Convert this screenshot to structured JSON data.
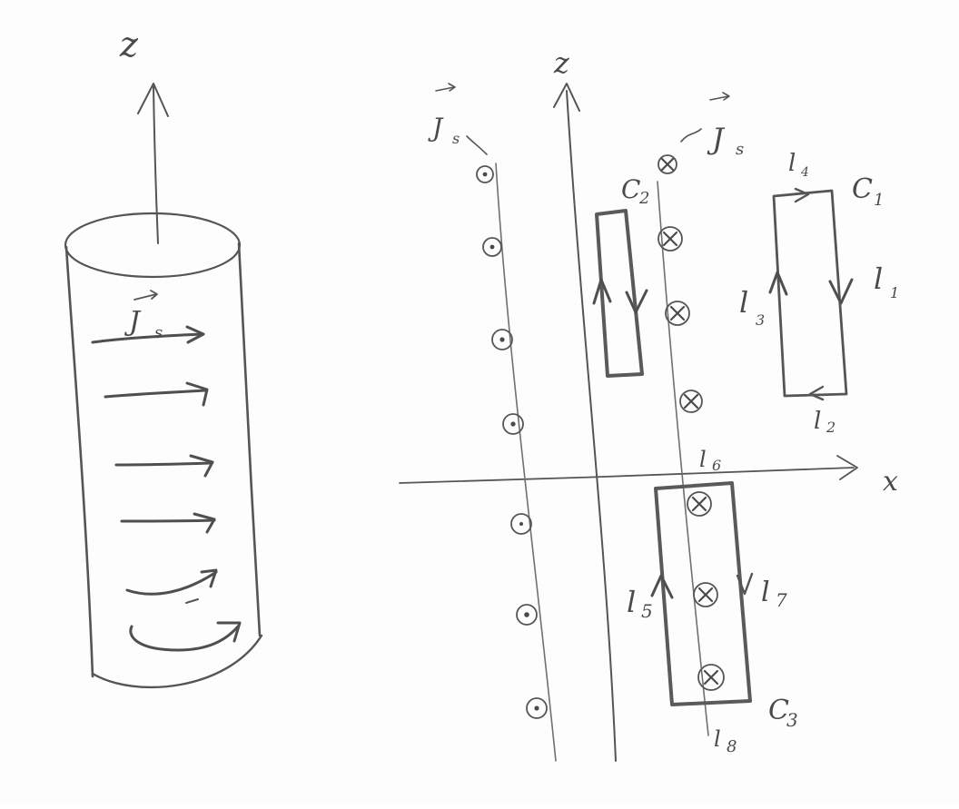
{
  "labels": {
    "left_z": "z",
    "left_current": "J",
    "left_current_sub": "s",
    "right_z": "z",
    "js_left": "J",
    "js_left_sub": "s",
    "js_right": "J",
    "js_right_sub": "s",
    "x_axis": "x",
    "c1": "C",
    "c1_sub": "1",
    "c2": "C",
    "c2_sub": "2",
    "c3": "C",
    "c3_sub": "3",
    "l1": "l",
    "l1_sub": "1",
    "l2": "l",
    "l2_sub": "2",
    "l3": "l",
    "l3_sub": "3",
    "l4": "l",
    "l4_sub": "4",
    "l5": "l",
    "l5_sub": "5",
    "l6": "l",
    "l6_sub": "6",
    "l7": "l",
    "l7_sub": "7",
    "l8": "l",
    "l8_sub": "8"
  },
  "colors": {
    "ink": "#555555",
    "paper": "#fdfdfd"
  },
  "icons": {
    "out_of_page": "dot-in-circle-icon",
    "into_page": "cross-in-circle-icon"
  }
}
